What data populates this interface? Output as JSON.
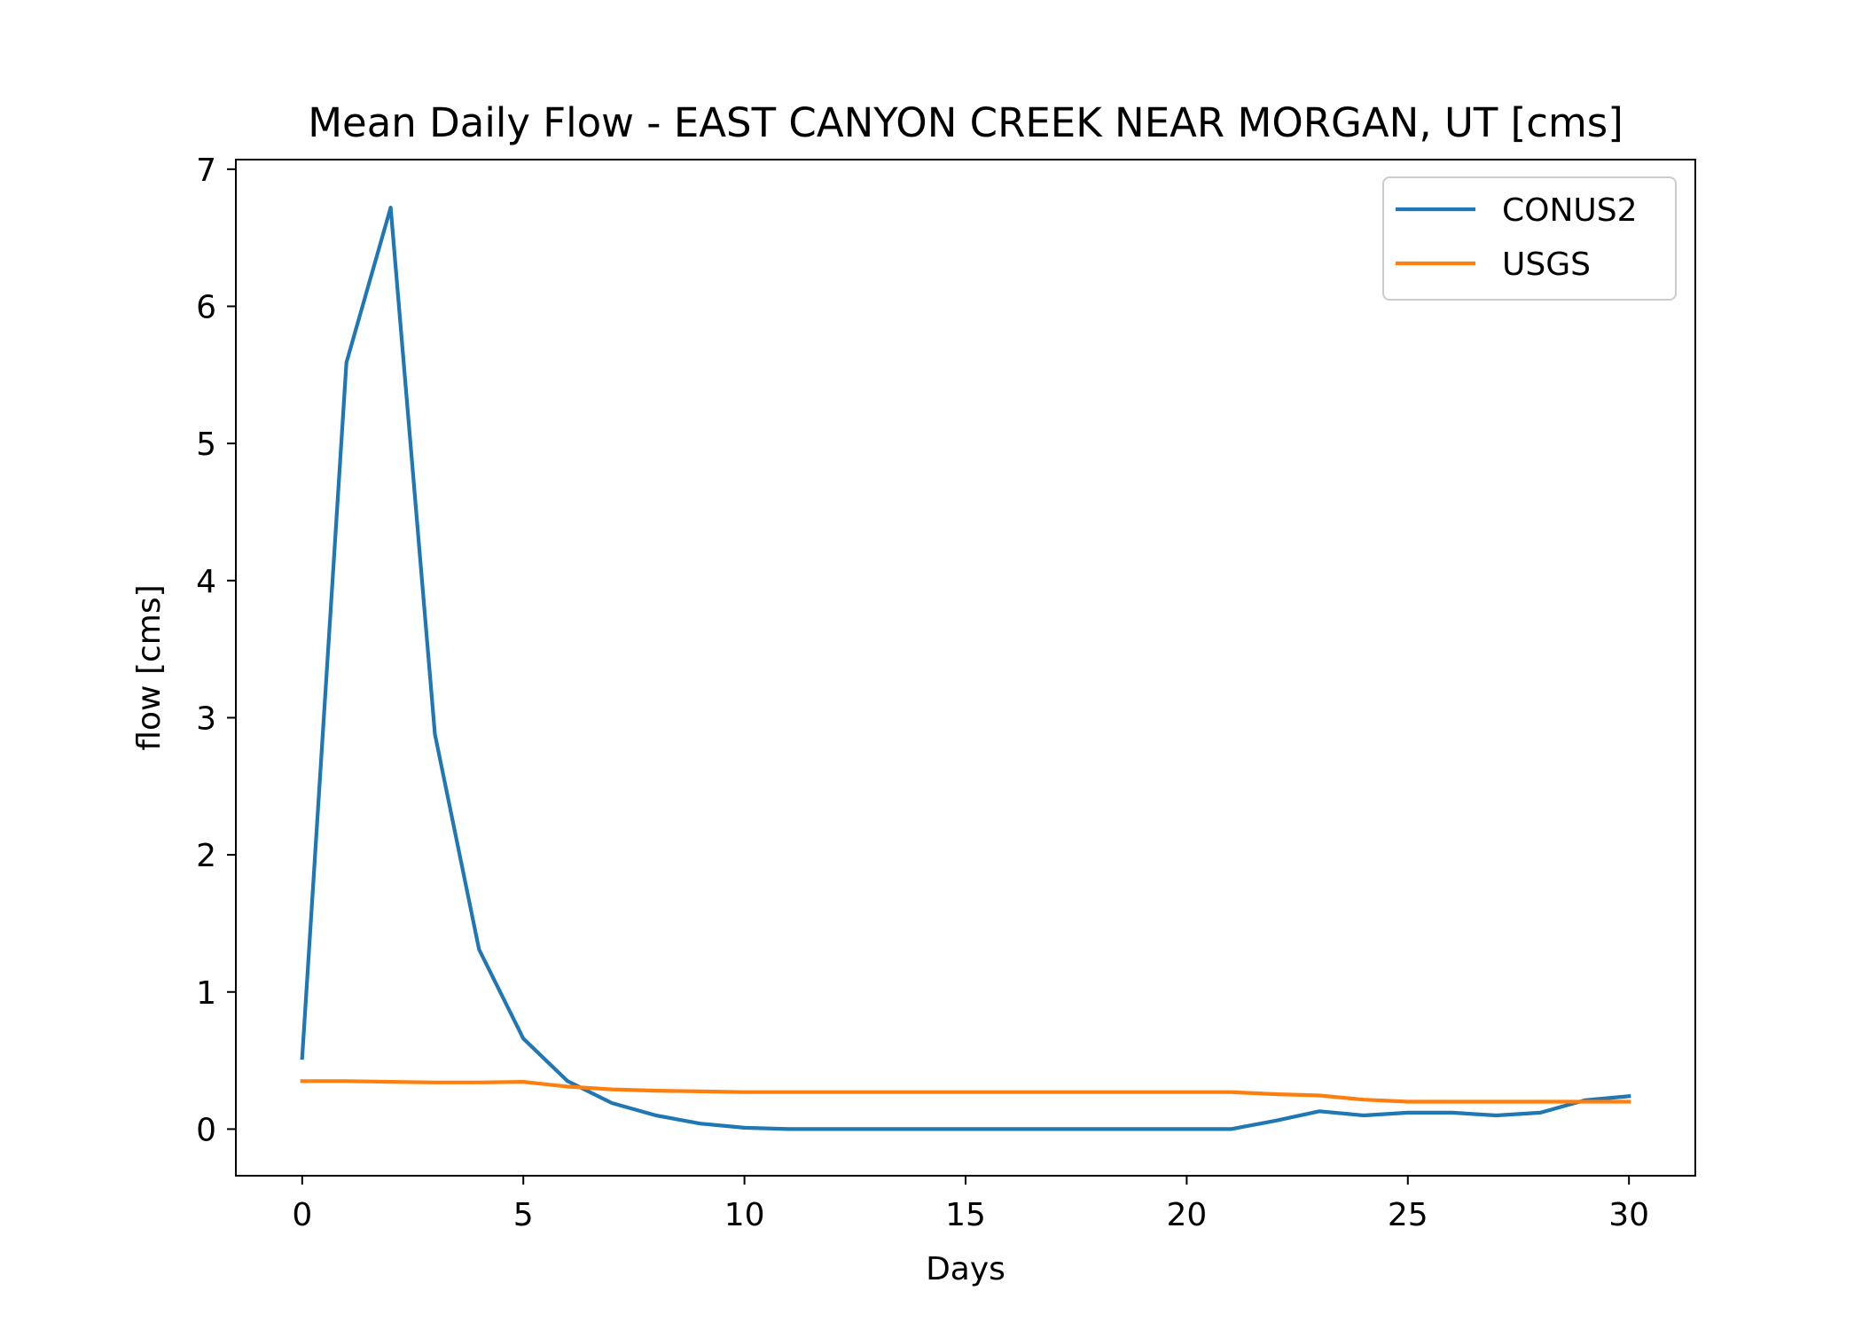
{
  "chart_data": {
    "type": "line",
    "title": "Mean Daily Flow - EAST CANYON CREEK NEAR MORGAN, UT [cms]",
    "xlabel": "Days",
    "ylabel": "flow [cms]",
    "xlim": [
      -1.5,
      31.5
    ],
    "ylim": [
      -0.34,
      7.07
    ],
    "xticks": [
      0,
      5,
      10,
      15,
      20,
      25,
      30
    ],
    "yticks": [
      0,
      1,
      2,
      3,
      4,
      5,
      6,
      7
    ],
    "grid": false,
    "legend_position": "upper right",
    "x": [
      0,
      1,
      2,
      3,
      4,
      5,
      6,
      7,
      8,
      9,
      10,
      11,
      12,
      13,
      14,
      15,
      16,
      17,
      18,
      19,
      20,
      21,
      22,
      23,
      24,
      25,
      26,
      27,
      28,
      29,
      30
    ],
    "series": [
      {
        "name": "CONUS2",
        "color": "#1f77b4",
        "values": [
          0.52,
          5.59,
          6.72,
          2.88,
          1.31,
          0.66,
          0.35,
          0.19,
          0.1,
          0.04,
          0.01,
          0.0,
          0.0,
          0.0,
          0.0,
          0.0,
          0.0,
          0.0,
          0.0,
          0.0,
          0.0,
          0.0,
          0.06,
          0.13,
          0.1,
          0.12,
          0.12,
          0.1,
          0.12,
          0.21,
          0.24
        ]
      },
      {
        "name": "USGS",
        "color": "#ff7f0e",
        "values": [
          0.35,
          0.35,
          0.345,
          0.34,
          0.34,
          0.345,
          0.31,
          0.29,
          0.28,
          0.275,
          0.27,
          0.27,
          0.27,
          0.27,
          0.27,
          0.27,
          0.27,
          0.27,
          0.27,
          0.27,
          0.27,
          0.27,
          0.255,
          0.245,
          0.215,
          0.2,
          0.2,
          0.2,
          0.2,
          0.2,
          0.2
        ]
      }
    ]
  }
}
